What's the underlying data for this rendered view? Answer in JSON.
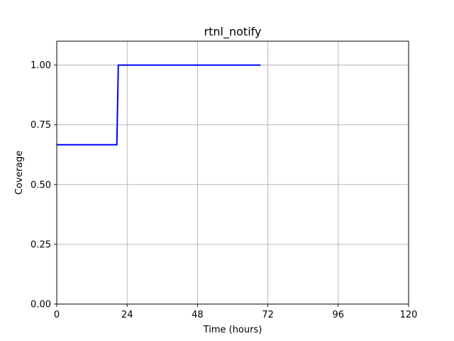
{
  "chart_data": {
    "type": "line",
    "title": "rtnl_notify",
    "xlabel": "Time (hours)",
    "ylabel": "Coverage",
    "xlim": [
      0,
      120
    ],
    "ylim": [
      0,
      1.1
    ],
    "x_ticks": [
      0,
      24,
      48,
      72,
      96,
      120
    ],
    "y_ticks": [
      0.0,
      0.25,
      0.5,
      0.75,
      1.0
    ],
    "x_tick_labels": [
      "0",
      "24",
      "48",
      "72",
      "96",
      "120"
    ],
    "y_tick_labels": [
      "0.00",
      "0.25",
      "0.50",
      "0.75",
      "1.00"
    ],
    "grid": true,
    "legend": "none",
    "series": [
      {
        "color": "#0000ff",
        "step": "post",
        "x": [
          0,
          20.5,
          21.0,
          69.5
        ],
        "y": [
          0.6667,
          0.6667,
          1.0,
          1.0
        ]
      }
    ]
  }
}
